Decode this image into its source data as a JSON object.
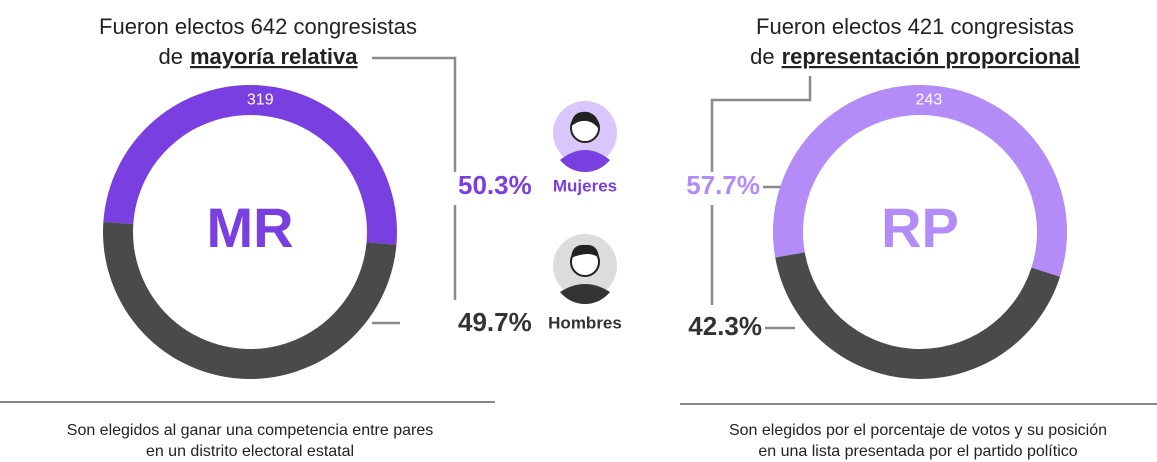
{
  "legend": [
    "Mujeres",
    "Hombres"
  ],
  "chart_data": [
    {
      "type": "donut",
      "title": "Fueron electos 642 congresistas",
      "subtitle_prefix": "de",
      "subtitle_emphasis": "mayoría relativa",
      "center_label": "MR",
      "values": [
        50.3,
        49.7
      ],
      "value_labels": [
        "50.3%",
        "49.7%"
      ],
      "colors": [
        "#7a3fe0",
        "#4a4a4a"
      ],
      "segment_annotation": "319",
      "caption": [
        "Son elegidos al ganar una competencia entre pares",
        "en un distrito electoral estatal"
      ]
    },
    {
      "type": "donut",
      "title": "Fueron electos 421 congresistas",
      "subtitle_prefix": "de",
      "subtitle_emphasis": "representación proporcional",
      "center_label": "RP",
      "values": [
        57.7,
        42.3
      ],
      "value_labels": [
        "57.7%",
        "42.3%"
      ],
      "colors": [
        "#b48cf7",
        "#4a4a4a"
      ],
      "segment_annotation": "243",
      "caption": [
        "Son elegidos por el porcentaje de votos y su posición",
        "en una lista presentada por el partido político"
      ]
    }
  ]
}
